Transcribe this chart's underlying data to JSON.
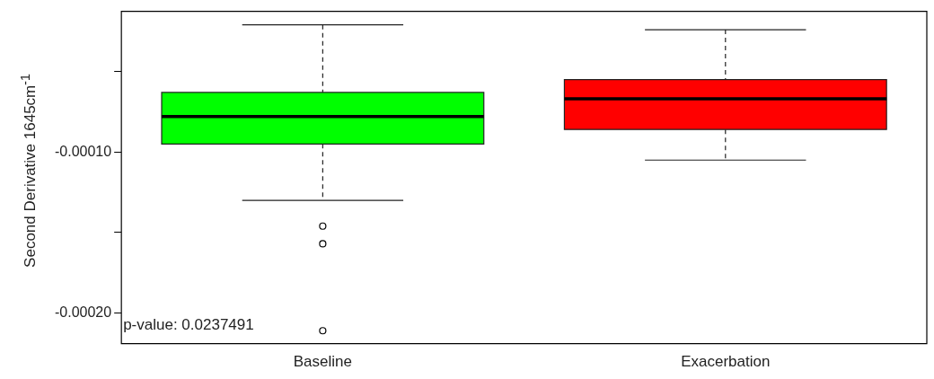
{
  "chart_data": {
    "type": "box",
    "ylabel": "Second Derivative 1645cm$^{-1}$",
    "categories": [
      "Baseline",
      "Exacerbation"
    ],
    "colors": [
      "#00ff00",
      "#ff0000"
    ],
    "boxes": [
      {
        "low": -0.00013,
        "q1": -9.5e-05,
        "median": -7.8e-05,
        "q3": -6.3e-05,
        "high": -2.1e-05,
        "outliers": [
          -0.000146,
          -0.000157,
          -0.000211
        ]
      },
      {
        "low": -0.000105,
        "q1": -8.6e-05,
        "median": -6.7e-05,
        "q3": -5.5e-05,
        "high": -2.4e-05
      }
    ],
    "ylim": [
      -0.000219,
      -1.26e-05
    ],
    "yticks": [
      {
        "value": -5e-05,
        "label": null
      },
      {
        "value": -0.0001,
        "label": "-0.00010"
      },
      {
        "value": -0.00015,
        "label": null
      },
      {
        "value": -0.0002,
        "label": "-0.00020"
      }
    ],
    "annotations": [
      "p-value: 0.0237491"
    ],
    "grid": false,
    "legend": false,
    "marker": "circle"
  }
}
